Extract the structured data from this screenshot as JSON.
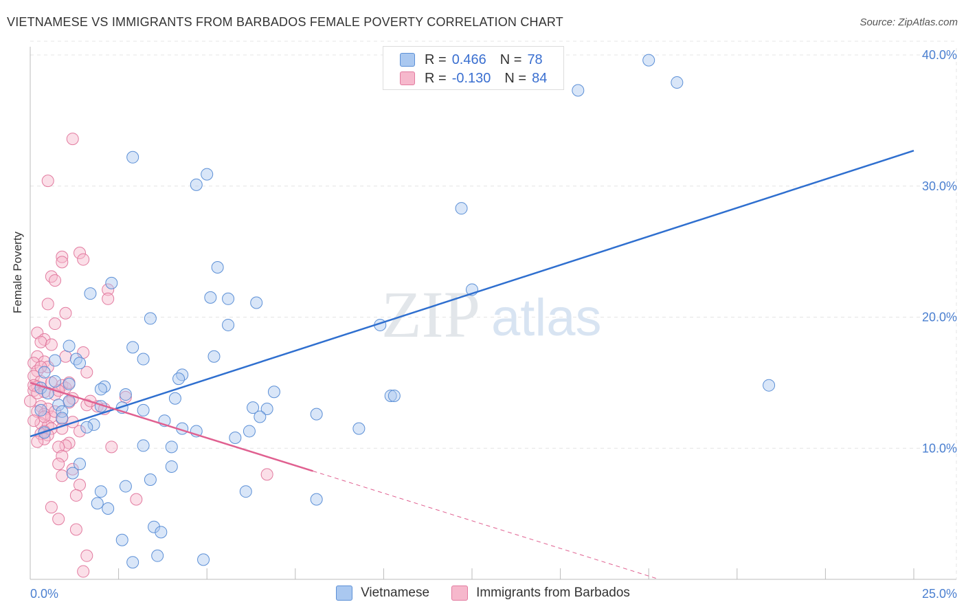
{
  "title": "VIETNAMESE VS IMMIGRANTS FROM BARBADOS FEMALE POVERTY CORRELATION CHART",
  "source": "Source: ZipAtlas.com",
  "watermark": {
    "zip": "ZIP",
    "atlas": "atlas"
  },
  "legend": {
    "rows": [
      {
        "r_label": "R =",
        "r_value": "0.466",
        "n_label": "N =",
        "n_value": "78"
      },
      {
        "r_label": "R =",
        "r_value": "-0.130",
        "n_label": "N =",
        "n_value": "84"
      }
    ]
  },
  "bottom_legend": [
    "Vietnamese",
    "Immigrants from Barbados"
  ],
  "colors": {
    "blue_fill": "#aac8f0",
    "blue_stroke": "#5b8fd6",
    "blue_line": "#2f6fcf",
    "pink_fill": "#f6b8cc",
    "pink_stroke": "#e27a9f",
    "pink_line": "#e06090",
    "tick_color": "#4a7fd0"
  },
  "chart_data": {
    "type": "scatter",
    "title": "VIETNAMESE VS IMMIGRANTS FROM BARBADOS FEMALE POVERTY CORRELATION CHART",
    "xlabel": "",
    "ylabel": "Female Poverty",
    "xlim": [
      0,
      25
    ],
    "ylim": [
      0,
      40
    ],
    "x_tick_labels": [
      "0.0%",
      "25.0%"
    ],
    "y_tick_labels": [
      {
        "value": 10,
        "label": "10.0%"
      },
      {
        "value": 20,
        "label": "20.0%"
      },
      {
        "value": 30,
        "label": "30.0%"
      },
      {
        "value": 40,
        "label": "40.0%"
      }
    ],
    "series": [
      {
        "name": "Vietnamese",
        "R": 0.466,
        "N": 78,
        "trend": {
          "x0": 0,
          "y0": 10.9,
          "x1": 25,
          "y1": 32.7,
          "dashed_from": null
        },
        "points": [
          [
            17.5,
            39.6
          ],
          [
            18.3,
            37.9
          ],
          [
            15.5,
            37.3
          ],
          [
            2.9,
            32.2
          ],
          [
            5.0,
            30.9
          ],
          [
            4.7,
            30.1
          ],
          [
            12.2,
            28.3
          ],
          [
            5.3,
            23.8
          ],
          [
            2.3,
            22.6
          ],
          [
            1.7,
            21.8
          ],
          [
            12.5,
            22.1
          ],
          [
            5.1,
            21.5
          ],
          [
            5.6,
            21.4
          ],
          [
            6.4,
            21.1
          ],
          [
            3.4,
            19.9
          ],
          [
            5.6,
            19.4
          ],
          [
            9.9,
            19.4
          ],
          [
            1.1,
            17.8
          ],
          [
            2.9,
            17.7
          ],
          [
            1.3,
            16.8
          ],
          [
            3.2,
            16.8
          ],
          [
            5.2,
            17.0
          ],
          [
            0.7,
            16.7
          ],
          [
            2.1,
            14.7
          ],
          [
            2.0,
            14.5
          ],
          [
            4.3,
            15.6
          ],
          [
            4.2,
            15.3
          ],
          [
            6.9,
            14.3
          ],
          [
            10.2,
            14.0
          ],
          [
            10.3,
            14.0
          ],
          [
            20.9,
            14.8
          ],
          [
            2.7,
            14.1
          ],
          [
            4.1,
            13.8
          ],
          [
            1.1,
            13.6
          ],
          [
            0.8,
            13.3
          ],
          [
            2.0,
            13.2
          ],
          [
            2.6,
            13.1
          ],
          [
            0.3,
            12.9
          ],
          [
            0.9,
            12.8
          ],
          [
            3.2,
            12.9
          ],
          [
            6.3,
            13.1
          ],
          [
            6.7,
            13.0
          ],
          [
            6.5,
            12.4
          ],
          [
            8.1,
            12.6
          ],
          [
            3.8,
            12.1
          ],
          [
            0.9,
            12.3
          ],
          [
            1.8,
            11.8
          ],
          [
            1.6,
            11.6
          ],
          [
            4.3,
            11.5
          ],
          [
            4.7,
            11.3
          ],
          [
            6.2,
            11.3
          ],
          [
            9.3,
            11.5
          ],
          [
            0.4,
            11.2
          ],
          [
            5.8,
            10.8
          ],
          [
            3.2,
            10.2
          ],
          [
            4.0,
            10.1
          ],
          [
            1.4,
            8.8
          ],
          [
            4.0,
            8.6
          ],
          [
            1.2,
            8.1
          ],
          [
            3.4,
            7.6
          ],
          [
            2.7,
            7.1
          ],
          [
            2.0,
            6.7
          ],
          [
            6.1,
            6.7
          ],
          [
            8.1,
            6.1
          ],
          [
            1.9,
            5.8
          ],
          [
            2.2,
            5.4
          ],
          [
            3.5,
            4.0
          ],
          [
            3.7,
            3.6
          ],
          [
            2.6,
            3.0
          ],
          [
            3.6,
            1.8
          ],
          [
            2.9,
            1.3
          ],
          [
            4.9,
            1.5
          ],
          [
            0.4,
            15.8
          ],
          [
            0.3,
            14.6
          ],
          [
            0.5,
            14.2
          ],
          [
            1.1,
            14.9
          ],
          [
            0.7,
            15.1
          ],
          [
            1.4,
            16.5
          ]
        ]
      },
      {
        "name": "Immigrants from Barbados",
        "R": -0.13,
        "N": 84,
        "trend": {
          "x0": 0,
          "y0": 15.0,
          "x1": 17.8,
          "y1": 0.0,
          "dashed_from": 8.0
        },
        "points": [
          [
            1.2,
            33.6
          ],
          [
            0.5,
            30.4
          ],
          [
            1.4,
            24.9
          ],
          [
            1.5,
            24.4
          ],
          [
            0.9,
            24.6
          ],
          [
            0.9,
            24.2
          ],
          [
            0.6,
            23.1
          ],
          [
            0.7,
            22.8
          ],
          [
            2.2,
            22.1
          ],
          [
            2.2,
            21.4
          ],
          [
            0.5,
            21.0
          ],
          [
            1.0,
            20.3
          ],
          [
            0.7,
            19.5
          ],
          [
            0.2,
            18.8
          ],
          [
            0.4,
            18.3
          ],
          [
            0.3,
            18.1
          ],
          [
            0.6,
            17.9
          ],
          [
            1.5,
            17.3
          ],
          [
            0.2,
            17.0
          ],
          [
            1.0,
            17.0
          ],
          [
            0.4,
            16.6
          ],
          [
            0.5,
            16.2
          ],
          [
            0.1,
            16.5
          ],
          [
            0.2,
            15.9
          ],
          [
            1.6,
            15.8
          ],
          [
            0.1,
            15.5
          ],
          [
            0.3,
            15.1
          ],
          [
            0.6,
            15.0
          ],
          [
            0.9,
            14.8
          ],
          [
            1.0,
            14.6
          ],
          [
            0.2,
            14.7
          ],
          [
            0.1,
            14.4
          ],
          [
            0.4,
            14.3
          ],
          [
            0.7,
            14.1
          ],
          [
            1.2,
            13.8
          ],
          [
            1.1,
            13.5
          ],
          [
            0.0,
            13.6
          ],
          [
            0.3,
            13.2
          ],
          [
            0.5,
            13.0
          ],
          [
            1.6,
            13.3
          ],
          [
            1.9,
            13.2
          ],
          [
            0.2,
            12.8
          ],
          [
            0.4,
            12.6
          ],
          [
            0.6,
            12.4
          ],
          [
            0.9,
            12.2
          ],
          [
            1.2,
            12.0
          ],
          [
            0.3,
            11.9
          ],
          [
            0.5,
            11.7
          ],
          [
            0.6,
            11.5
          ],
          [
            0.4,
            11.3
          ],
          [
            0.3,
            11.1
          ],
          [
            0.5,
            11.0
          ],
          [
            1.4,
            11.3
          ],
          [
            0.4,
            10.7
          ],
          [
            0.2,
            10.5
          ],
          [
            1.1,
            10.4
          ],
          [
            1.0,
            10.2
          ],
          [
            0.8,
            10.1
          ],
          [
            2.3,
            10.1
          ],
          [
            0.9,
            9.4
          ],
          [
            0.8,
            8.8
          ],
          [
            1.2,
            8.4
          ],
          [
            0.9,
            7.9
          ],
          [
            1.4,
            7.2
          ],
          [
            3.0,
            6.1
          ],
          [
            1.3,
            6.4
          ],
          [
            0.6,
            5.5
          ],
          [
            0.8,
            4.6
          ],
          [
            1.3,
            3.8
          ],
          [
            1.6,
            1.8
          ],
          [
            1.5,
            0.6
          ],
          [
            6.7,
            8.0
          ],
          [
            2.7,
            13.9
          ],
          [
            0.2,
            14.2
          ],
          [
            0.8,
            14.4
          ],
          [
            1.1,
            15.0
          ],
          [
            0.1,
            12.1
          ],
          [
            0.3,
            16.2
          ],
          [
            0.7,
            12.8
          ],
          [
            0.1,
            14.8
          ],
          [
            2.1,
            13.0
          ],
          [
            0.4,
            12.4
          ],
          [
            0.9,
            11.5
          ],
          [
            1.7,
            13.6
          ]
        ]
      }
    ],
    "grid": true,
    "legend_position": "top-center"
  }
}
